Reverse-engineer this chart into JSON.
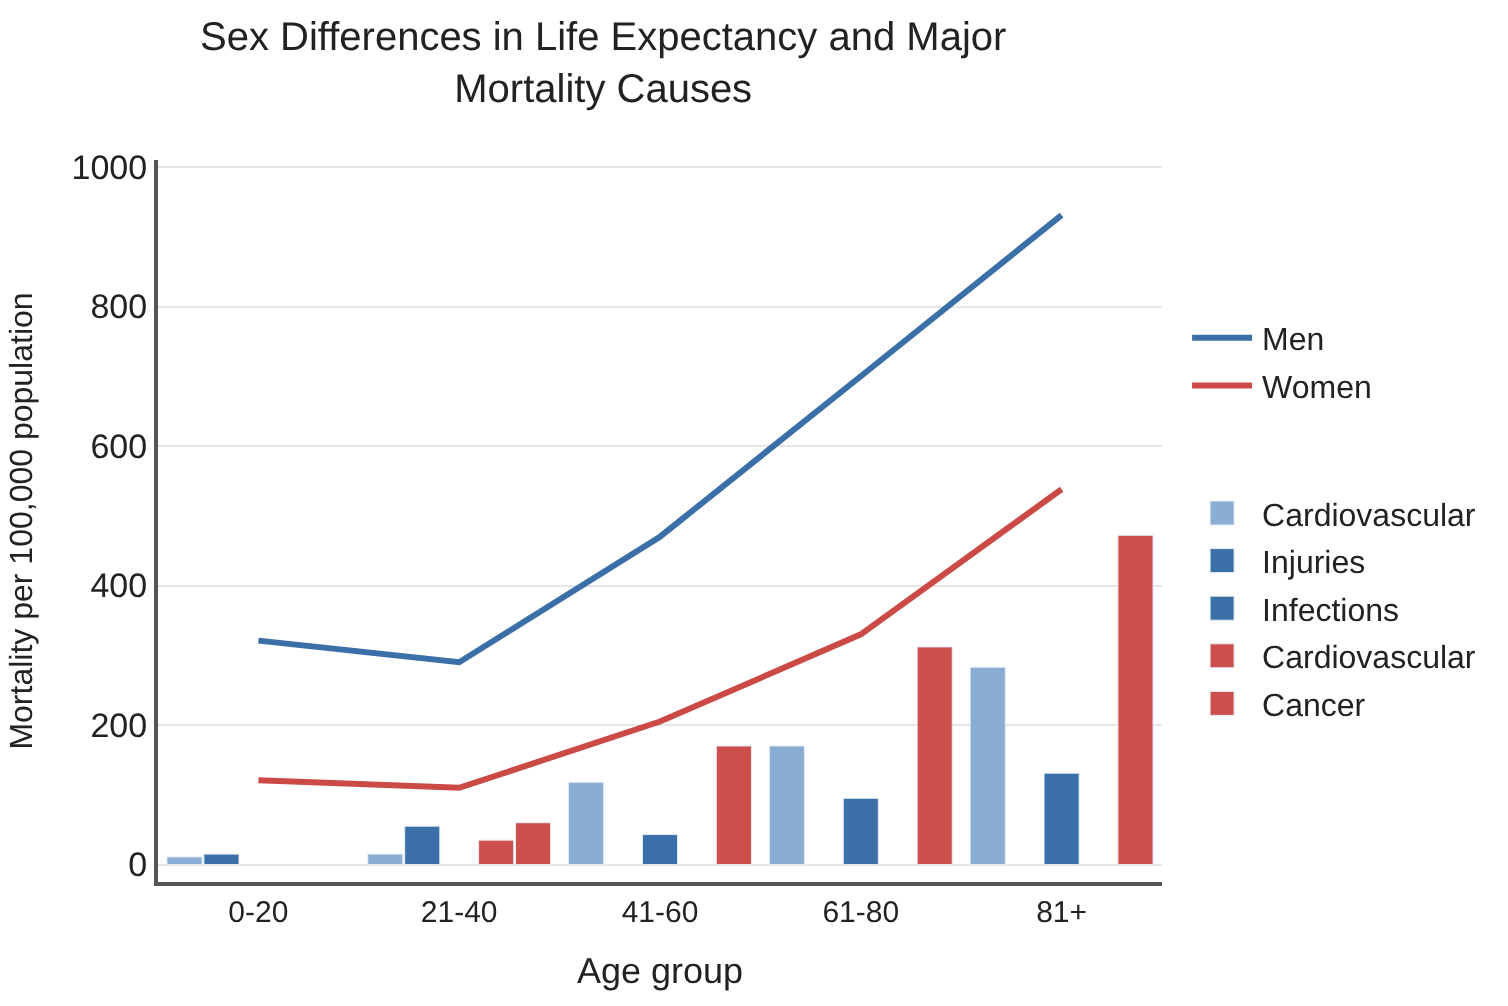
{
  "chart_data": {
    "type": "bar",
    "title": "Sex Differences in Life Expectancy and Major\nMortality Causes",
    "xlabel": "Age group",
    "ylabel": "Mortality per 100,000 population",
    "categories": [
      "0-20",
      "21-40",
      "41-60",
      "61-80",
      "81+"
    ],
    "ylim": [
      -25,
      1010
    ],
    "yticks": [
      0,
      200,
      400,
      600,
      800,
      1000
    ],
    "grid": "y",
    "legend": "right",
    "series": [
      {
        "name": "Men",
        "type": "line",
        "color": "#3b6fa8",
        "values": [
          321,
          290,
          470,
          700,
          931
        ]
      },
      {
        "name": "Women",
        "type": "line",
        "color": "#cc4a45",
        "values": [
          121,
          110,
          205,
          330,
          538
        ]
      },
      {
        "name": "Cardiovascular",
        "color": "#8aaed3",
        "values": [
          11,
          15,
          118,
          170,
          283
        ]
      },
      {
        "name": "Injuries",
        "color": "#3b6fa8",
        "values": [
          15,
          55,
          null,
          null,
          null
        ]
      },
      {
        "name": "Infections",
        "color": "#3b6fa8",
        "values": [
          null,
          null,
          43,
          95,
          131
        ]
      },
      {
        "name": "Cardiovascular",
        "color": "#cd4f4b",
        "values": [
          null,
          35,
          null,
          null,
          null
        ]
      },
      {
        "name": "Cancer",
        "color": "#cd4f4b",
        "values": [
          null,
          60,
          170,
          312,
          472
        ]
      }
    ]
  }
}
